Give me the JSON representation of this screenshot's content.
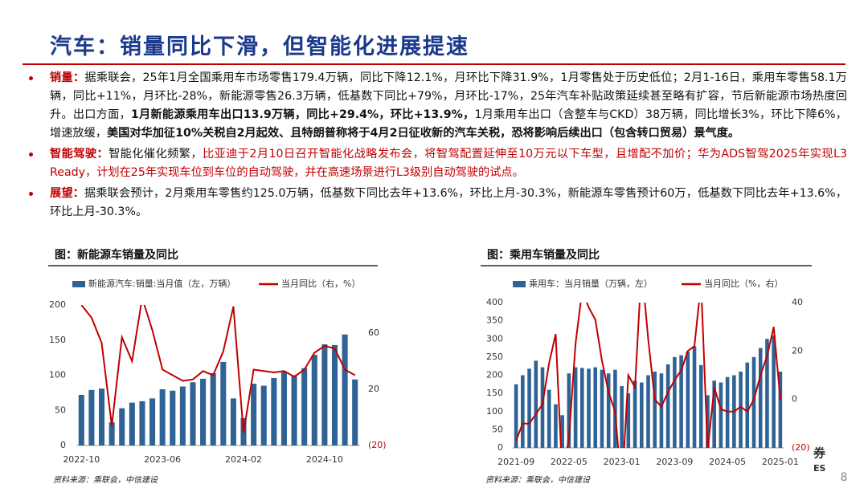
{
  "header": {
    "title": "汽车：销量同比下滑，但智能化进展提速"
  },
  "bullets": [
    [
      {
        "text": "销量：",
        "style": "label"
      },
      {
        "text": "据乘联会，25年1月全国乘用车市场零售179.4万辆，同比下降12.1%，月环比下降31.9%，1月零售处于历史低位；2月1-16日，乘用车零售58.1万辆，同比+11%，月环比-28%，新能源零售26.3万辆，低基数下同比+79%，月环比-17%，25年汽车补贴政策延续甚至略有扩容，节后新能源市场热度回升。出口方面，",
        "style": "normal"
      },
      {
        "text": "1月新能源乘用车出口13.9万辆，同比+29.4%，环比+13.9%，",
        "style": "bold"
      },
      {
        "text": "1月乘用车出口（含整车与CKD）38万辆，同比增长3%，环比下降6%，增速放缓，",
        "style": "normal"
      },
      {
        "text": "美国对华加征10%关税自2月起效、且特朗普称将于4月2日征收新的汽车关税，恐将影响后续出口（包含转口贸易）景气度。",
        "style": "bold"
      }
    ],
    [
      {
        "text": "智能驾驶：",
        "style": "label"
      },
      {
        "text": "智能化催化频繁，",
        "style": "normal"
      },
      {
        "text": "比亚迪于2月10日召开智能化战略发布会，将智驾配置延伸至10万元以下车型，且增配不加价；华为ADS智驾2025年实现L3 Ready，计划在25年实现车位到车位的自动驾驶，并在高速场景进行L3级别自动驾驶的试点。",
        "style": "red"
      }
    ],
    [
      {
        "text": "展望：",
        "style": "label"
      },
      {
        "text": "据乘联会预计，2月乘用车零售约125.0万辆，低基数下同比去年+13.6%，环比上月-30.3%，新能源车零售预计60万，低基数下同比去年+13.6%，环比上月-30.3%。",
        "style": "normal"
      }
    ]
  ],
  "chart_data": [
    {
      "type": "bar-line",
      "title": "图：新能源车销量及同比",
      "categories": [
        "2022-10",
        null,
        null,
        null,
        null,
        null,
        null,
        null,
        "2023-06",
        null,
        null,
        null,
        null,
        null,
        null,
        null,
        "2024-02",
        null,
        null,
        null,
        null,
        null,
        null,
        null,
        "2024-10",
        null,
        null,
        null
      ],
      "series": [
        {
          "name": "新能源汽车:销量:当月值（左，万辆）",
          "color": "#2f6396",
          "type": "bar",
          "values": [
            72,
            79,
            81,
            33,
            53,
            61,
            63,
            67,
            80,
            78,
            84,
            90,
            95,
            103,
            119,
            67,
            39,
            88,
            85,
            96,
            105,
            100,
            110,
            129,
            144,
            143,
            158,
            94
          ]
        },
        {
          "name": "当月同比（右，%）",
          "color": "#c00000",
          "type": "line",
          "axis": "y2",
          "values": [
            80,
            71,
            53,
            -6,
            57,
            40,
            85,
            62,
            34,
            30,
            26,
            27,
            33,
            30,
            47,
            79,
            -11,
            34,
            33,
            32,
            33,
            29,
            34,
            46,
            51,
            49,
            34,
            30
          ]
        }
      ],
      "ylim": [
        0,
        200
      ],
      "yticks": [
        0,
        50,
        100,
        150,
        200
      ],
      "y2lim": [
        -20,
        80
      ],
      "y2ticks": [
        {
          "value": -20,
          "label": "(20)"
        },
        20,
        60
      ],
      "source": "资料来源：乘联会，中信建设"
    },
    {
      "type": "bar-line",
      "title": "图：乘用车销量及同比",
      "categories": [
        "2021-09",
        null,
        null,
        null,
        null,
        null,
        null,
        null,
        "2022-05",
        null,
        null,
        null,
        null,
        null,
        null,
        null,
        "2023-01",
        null,
        null,
        null,
        null,
        null,
        null,
        null,
        "2023-09",
        null,
        null,
        null,
        null,
        null,
        null,
        null,
        "2024-05",
        null,
        null,
        null,
        null,
        null,
        null,
        null,
        "2025-01"
      ],
      "series": [
        {
          "name": "乘用车：当月销量（万辆，左）",
          "color": "#2f6396",
          "type": "bar",
          "values": [
            175,
            200,
            218,
            240,
            222,
            160,
            120,
            90,
            205,
            222,
            220,
            218,
            222,
            215,
            205,
            215,
            170,
            150,
            185,
            180,
            200,
            210,
            205,
            230,
            250,
            255,
            265,
            280,
            228,
            145,
            185,
            180,
            195,
            200,
            210,
            235,
            250,
            275,
            300,
            310,
            210
          ]
        },
        {
          "name": "当月同比（%，右）",
          "color": "#c00000",
          "type": "line",
          "axis": "y2",
          "values": [
            -17,
            -10,
            -10,
            -6,
            -2,
            15,
            27,
            -32,
            -16,
            23,
            45,
            38,
            33,
            16,
            3,
            -5,
            -38,
            10,
            5,
            55,
            25,
            0,
            -3,
            3,
            8,
            12,
            20,
            22,
            48,
            -21,
            5,
            -4,
            -5,
            -5,
            -3,
            -5,
            0,
            10,
            18,
            30,
            0
          ]
        }
      ],
      "ylim": [
        0,
        400
      ],
      "yticks": [
        0,
        50,
        100,
        150,
        200,
        250,
        300,
        350,
        400
      ],
      "y2lim": [
        -20,
        40
      ],
      "y2ticks": [
        {
          "value": -20,
          "label": "(20)"
        },
        0,
        20,
        40
      ],
      "source": "资料来源：乘联会，中信建设"
    }
  ],
  "watermark": [
    "券",
    "ES"
  ],
  "page_number": "8"
}
